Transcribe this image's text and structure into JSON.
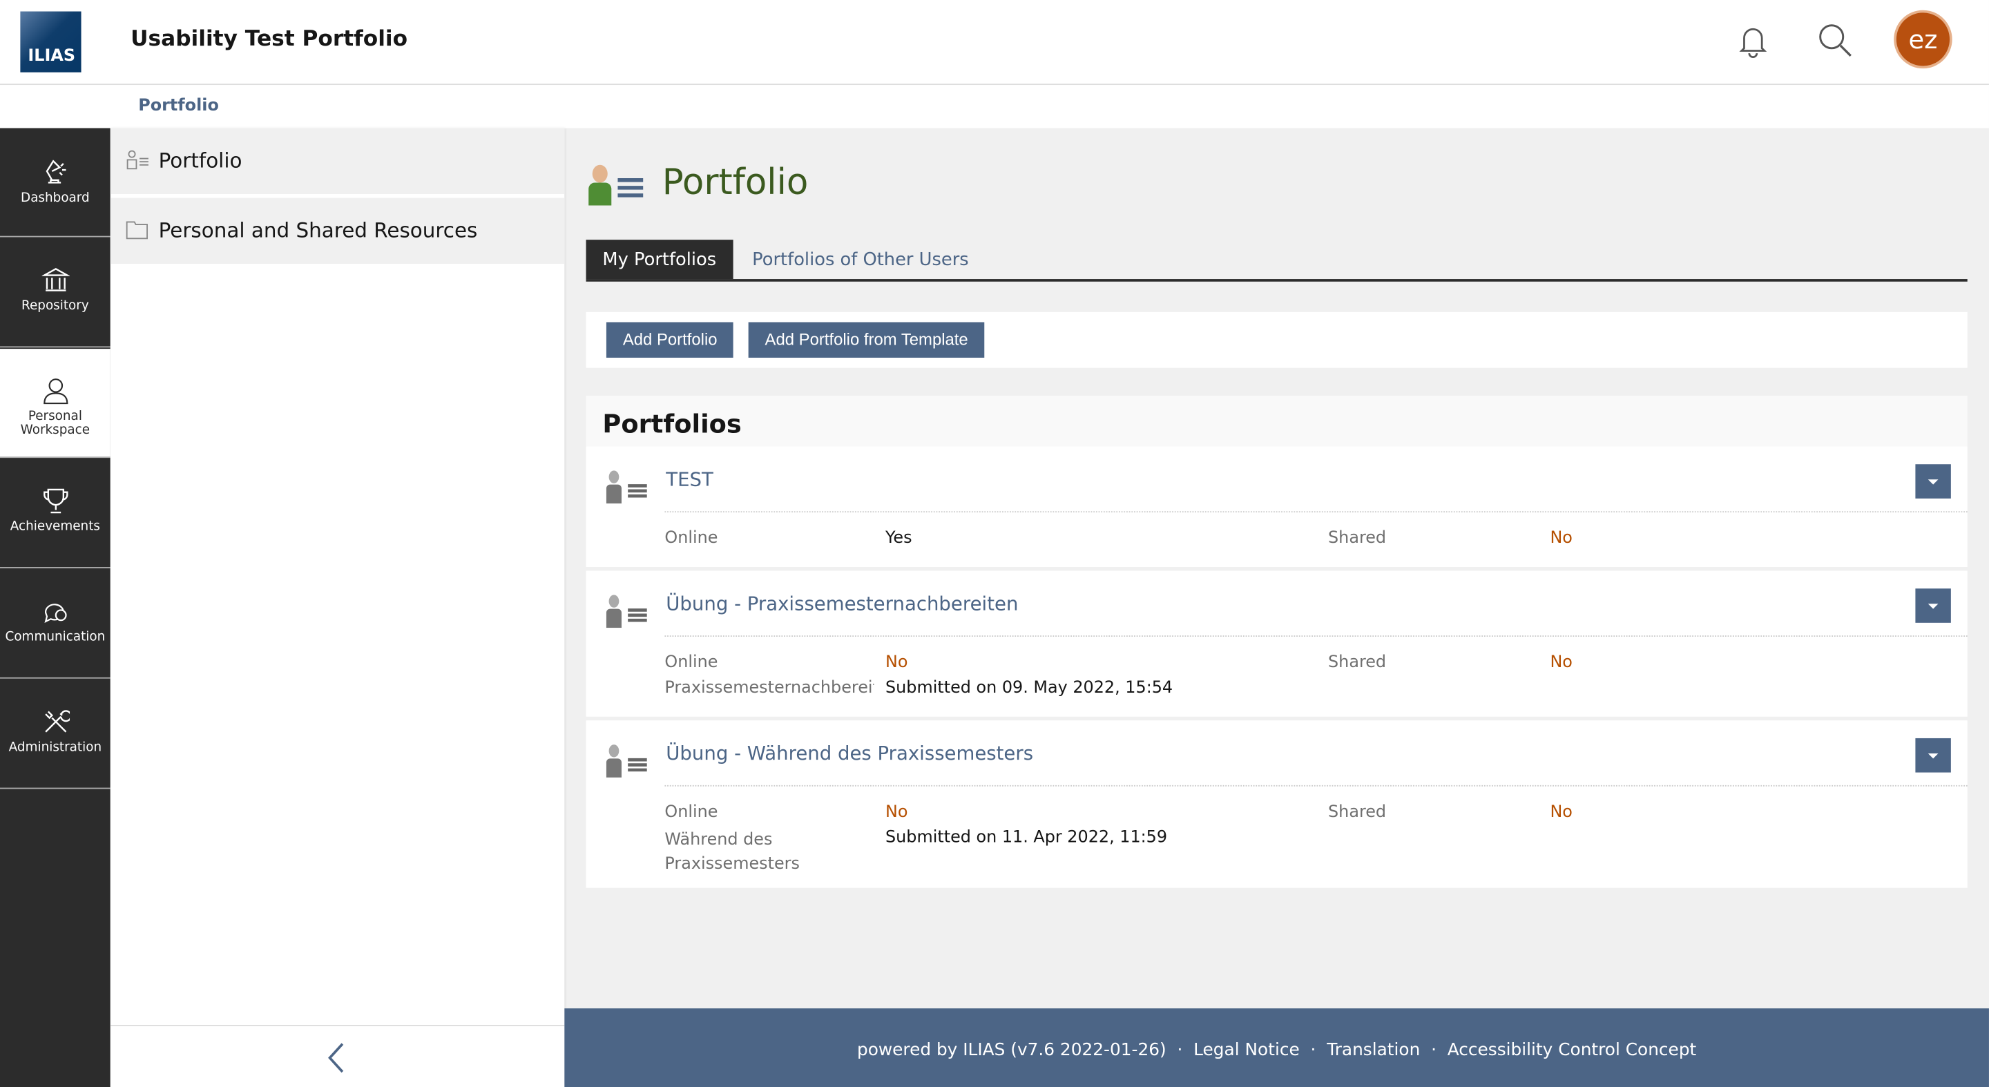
{
  "header": {
    "logo_text": "ILIAS",
    "title": "Usability Test Portfolio",
    "avatar_initials": "ez"
  },
  "breadcrumb": [
    "Portfolio"
  ],
  "mainbar": [
    {
      "label": "Dashboard",
      "icon": "dashboard-lamp-icon"
    },
    {
      "label": "Repository",
      "icon": "repository-building-icon"
    },
    {
      "label": "Personal Workspace",
      "icon": "person-icon",
      "active": true
    },
    {
      "label": "Achievements",
      "icon": "trophy-icon"
    },
    {
      "label": "Communication",
      "icon": "chat-bubbles-icon"
    },
    {
      "label": "Administration",
      "icon": "tools-icon"
    }
  ],
  "slate": {
    "items": [
      {
        "label": "Portfolio",
        "icon": "portfolio-icon"
      },
      {
        "label": "Personal and Shared Resources",
        "icon": "folder-icon"
      }
    ]
  },
  "page": {
    "title": "Portfolio",
    "tabs": [
      {
        "label": "My Portfolios",
        "active": true
      },
      {
        "label": "Portfolios of Other Users"
      }
    ],
    "toolbar": {
      "add": "Add Portfolio",
      "add_template": "Add Portfolio from Template"
    },
    "panel_title": "Portfolios",
    "items": [
      {
        "title": "TEST",
        "online_label": "Online",
        "online": "Yes",
        "shared_label": "Shared",
        "shared": "No"
      },
      {
        "title": "Übung - Praxissemesternachbereiten",
        "online_label": "Online",
        "online": "No",
        "shared_label": "Shared",
        "shared": "No",
        "extra_label": "Praxissemesternachbereit",
        "extra_value": "Submitted on 09. May 2022, 15:54"
      },
      {
        "title": "Übung - Während des Praxissemesters",
        "online_label": "Online",
        "online": "No",
        "shared_label": "Shared",
        "shared": "No",
        "extra_label": "Während des Praxissemesters",
        "extra_value": "Submitted on 11. Apr 2022, 11:59"
      }
    ]
  },
  "footer": {
    "powered": "powered by ILIAS (v7.6 2022-01-26)",
    "links": [
      "Legal Notice",
      "Translation",
      "Accessibility Control Concept"
    ],
    "separator": "·"
  },
  "colors": {
    "accent": "#4c6586",
    "mainbar": "#2c2c2c",
    "negative": "#b54f00",
    "title": "#3b5a1f",
    "avatar": "#b8500f"
  }
}
